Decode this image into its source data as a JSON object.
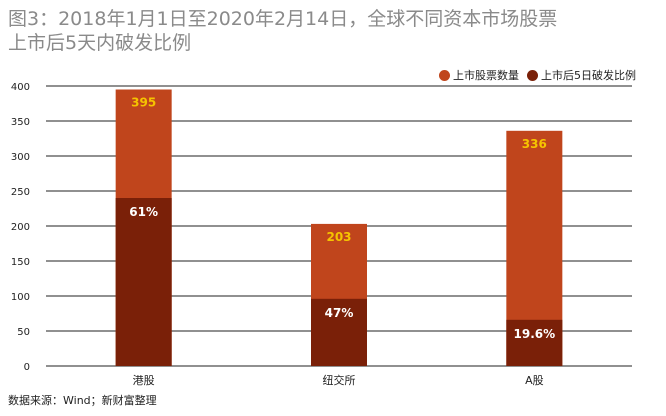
{
  "title_lines": [
    "图3：2018年1月1日至2020年2月14日，全球不同资本市场股票",
    "上市后5天内破发比例"
  ],
  "source": "数据来源：Wind；新财富整理",
  "colors": {
    "total": "#c0451c",
    "broken": "#7a2008",
    "total_label": "#f5c400",
    "broken_label": "#ffffff",
    "gridline": "#222222"
  },
  "chart_data": {
    "type": "bar",
    "categories": [
      "港股",
      "纽交所",
      "A股"
    ],
    "series": [
      {
        "name": "上市股票数量",
        "values": [
          395,
          203,
          336
        ],
        "labels": [
          "395",
          "203",
          "336"
        ]
      },
      {
        "name": "上市后5日破发比例",
        "values": [
          240,
          96,
          66
        ],
        "labels": [
          "61%",
          "47%",
          "19.6%"
        ]
      }
    ],
    "yticks": [
      0,
      50,
      100,
      150,
      200,
      250,
      300,
      350,
      400
    ],
    "ylim": [
      0,
      400
    ],
    "grid": true,
    "legend": "top-right",
    "xlabel": "",
    "ylabel": ""
  }
}
